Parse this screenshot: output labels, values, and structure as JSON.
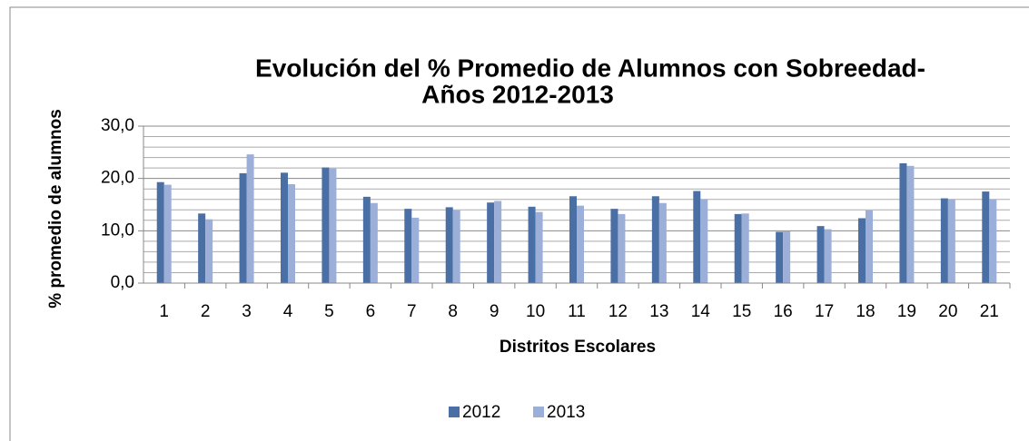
{
  "chart_data": {
    "type": "bar",
    "title": "Evolución del % Promedio de Alumnos con Sobreedad-",
    "subtitle": "Años 2012-2013",
    "x_label": "Distritos Escolares",
    "y_label": "% promedio de alumnos",
    "categories": [
      "1",
      "2",
      "3",
      "4",
      "5",
      "6",
      "7",
      "8",
      "9",
      "10",
      "11",
      "12",
      "13",
      "14",
      "15",
      "16",
      "17",
      "18",
      "19",
      "20",
      "21"
    ],
    "series": [
      {
        "name": "2012",
        "color": "#4a6fa5",
        "values": [
          19.3,
          13.3,
          21.0,
          21.1,
          22.1,
          16.5,
          14.2,
          14.5,
          15.4,
          14.6,
          16.6,
          14.2,
          16.6,
          17.6,
          13.2,
          9.8,
          10.9,
          12.4,
          22.9,
          16.2,
          17.5
        ]
      },
      {
        "name": "2013",
        "color": "#9bafd8",
        "values": [
          18.8,
          12.2,
          24.6,
          18.9,
          21.9,
          15.3,
          12.5,
          13.9,
          15.7,
          13.6,
          14.8,
          13.2,
          15.3,
          16.0,
          13.3,
          9.9,
          10.3,
          13.9,
          22.4,
          16.0,
          16.0
        ]
      }
    ],
    "ylim": [
      0,
      30
    ],
    "yticks": [
      {
        "value": 0,
        "label": "0,0"
      },
      {
        "value": 10,
        "label": "10,0"
      },
      {
        "value": 20,
        "label": "20,0"
      },
      {
        "value": 30,
        "label": "30,0"
      }
    ],
    "minor_yticks": [
      2,
      4,
      6,
      8,
      12,
      14,
      16,
      18,
      22,
      24,
      26,
      28
    ],
    "grid": true,
    "legend": "bottom"
  }
}
